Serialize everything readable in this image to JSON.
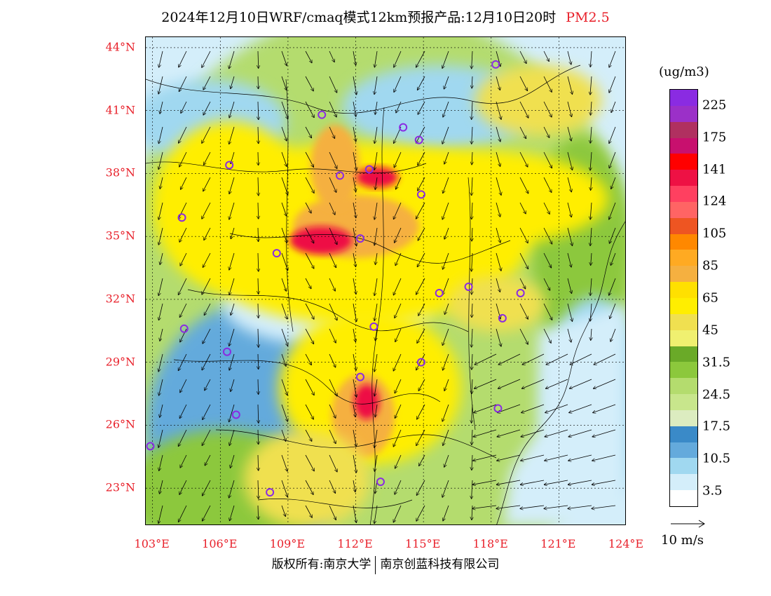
{
  "title": {
    "main": "2024年12月10日WRF/cmaq模式12km预报产品:12月10日20时",
    "pollutant": "PM2.5"
  },
  "axes": {
    "lat_labels": [
      "44°N",
      "41°N",
      "38°N",
      "35°N",
      "32°N",
      "29°N",
      "26°N",
      "23°N"
    ],
    "lon_labels": [
      "103°E",
      "106°E",
      "109°E",
      "112°E",
      "115°E",
      "118°E",
      "121°E",
      "124°E"
    ],
    "lat_values": [
      44,
      41,
      38,
      35,
      32,
      29,
      26,
      23
    ],
    "lon_values": [
      103,
      106,
      109,
      112,
      115,
      118,
      121,
      124
    ],
    "lat_range": [
      21.2,
      44.5
    ],
    "lon_range": [
      102.7,
      124.0
    ]
  },
  "legend": {
    "unit": "(ug/m3)",
    "labels": [
      "225",
      "175",
      "141",
      "124",
      "105",
      "85",
      "65",
      "45",
      "31.5",
      "24.5",
      "17.5",
      "10.5",
      "3.5"
    ],
    "colors": [
      "#8a2be2",
      "#9b30c8",
      "#b03060",
      "#c8106e",
      "#ff0000",
      "#ee1144",
      "#ff4060",
      "#ff6464",
      "#ee5522",
      "#ff8800",
      "#ffaa22",
      "#f5b040",
      "#ffe000",
      "#ffee00",
      "#f0e050",
      "#f0f070",
      "#6aaa28",
      "#8cc83c",
      "#b4dc6e",
      "#c8e68c",
      "#dcecc0",
      "#3a8ac8",
      "#64aadc",
      "#a0d8f0",
      "#d4eefa",
      "#ffffff"
    ]
  },
  "wind_reference": {
    "label": "10 m/s"
  },
  "footer": {
    "left": "版权所有:南京大学",
    "right": "南京创蓝科技有限公司"
  },
  "map_colors": {
    "sea": "#d4eefa",
    "low": "#a0d8f0",
    "mid_blue": "#64aadc",
    "green": "#8cc83c",
    "light_green": "#b4dc6e",
    "yellow": "#ffee00",
    "pale_yellow": "#f0e050",
    "orange": "#f5b040",
    "red": "#ee1144",
    "city_marker": "#8a2be2"
  },
  "city_markers": [
    {
      "lon": 118.2,
      "lat": 43.2
    },
    {
      "lon": 110.5,
      "lat": 40.8
    },
    {
      "lon": 114.1,
      "lat": 40.2
    },
    {
      "lon": 114.8,
      "lat": 39.6
    },
    {
      "lon": 106.4,
      "lat": 38.4
    },
    {
      "lon": 111.3,
      "lat": 37.9
    },
    {
      "lon": 112.6,
      "lat": 38.2
    },
    {
      "lon": 114.9,
      "lat": 37.0
    },
    {
      "lon": 104.3,
      "lat": 35.9
    },
    {
      "lon": 112.2,
      "lat": 34.9
    },
    {
      "lon": 108.5,
      "lat": 34.2
    },
    {
      "lon": 115.7,
      "lat": 32.3
    },
    {
      "lon": 117.0,
      "lat": 32.6
    },
    {
      "lon": 119.3,
      "lat": 32.3
    },
    {
      "lon": 104.4,
      "lat": 30.6
    },
    {
      "lon": 112.8,
      "lat": 30.7
    },
    {
      "lon": 118.5,
      "lat": 31.1
    },
    {
      "lon": 106.3,
      "lat": 29.5
    },
    {
      "lon": 114.9,
      "lat": 29.0
    },
    {
      "lon": 112.2,
      "lat": 28.3
    },
    {
      "lon": 106.7,
      "lat": 26.5
    },
    {
      "lon": 118.3,
      "lat": 26.8
    },
    {
      "lon": 102.9,
      "lat": 25.0
    },
    {
      "lon": 108.2,
      "lat": 22.8
    },
    {
      "lon": 113.1,
      "lat": 23.3
    }
  ]
}
